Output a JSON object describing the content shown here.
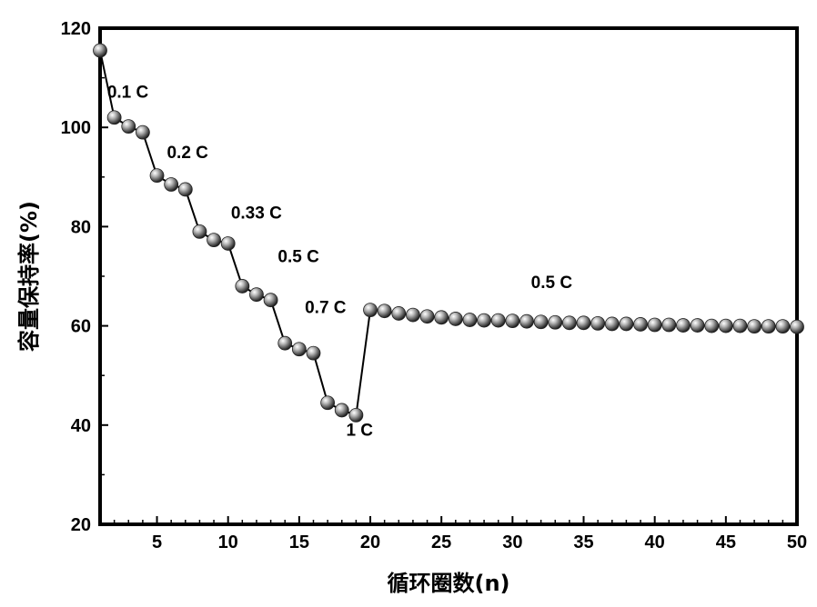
{
  "chart_data": {
    "type": "scatter",
    "title": "",
    "xlabel": "循环圈数(n)",
    "ylabel": "容量保持率(%)",
    "xlim": [
      1,
      50
    ],
    "ylim": [
      20,
      120
    ],
    "x_ticks": [
      "5",
      "10",
      "15",
      "20",
      "25",
      "30",
      "35",
      "40",
      "45",
      "50"
    ],
    "y_ticks": [
      "20",
      "40",
      "60",
      "80",
      "100",
      "120"
    ],
    "grid": false,
    "legend": "none",
    "series": [
      {
        "x": [
          1,
          2,
          3,
          4,
          5,
          6,
          7,
          8,
          9,
          10,
          11,
          12,
          13,
          14,
          15,
          16,
          17,
          18,
          19,
          20,
          21,
          22,
          23,
          24,
          25,
          26,
          27,
          28,
          29,
          30,
          31,
          32,
          33,
          34,
          35,
          36,
          37,
          38,
          39,
          40,
          41,
          42,
          43,
          44,
          45,
          46,
          47,
          48,
          49,
          50
        ],
        "y": [
          115.5,
          102,
          100.2,
          99,
          90.3,
          88.5,
          87.5,
          79,
          77.3,
          76.6,
          68,
          66.3,
          65.2,
          56.5,
          55.3,
          54.5,
          44.5,
          43,
          42,
          63.2,
          63,
          62.5,
          62.2,
          61.9,
          61.7,
          61.4,
          61.2,
          61.1,
          61.1,
          61,
          60.9,
          60.8,
          60.7,
          60.6,
          60.6,
          60.5,
          60.4,
          60.4,
          60.3,
          60.2,
          60.2,
          60.1,
          60.1,
          60,
          60,
          60,
          59.9,
          59.9,
          59.9,
          59.8
        ]
      }
    ],
    "annotations": [
      {
        "text": "0.1 C",
        "x": 1.5,
        "y": 106
      },
      {
        "text": "0.2 C",
        "x": 5.7,
        "y": 93.8
      },
      {
        "text": "0.33 C",
        "x": 10.2,
        "y": 81.6
      },
      {
        "text": "0.5 C",
        "x": 13.5,
        "y": 72.8
      },
      {
        "text": "0.7 C",
        "x": 15.4,
        "y": 62.6
      },
      {
        "text": "1 C",
        "x": 18.3,
        "y": 37.9
      },
      {
        "text": "0.5 C",
        "x": 31.3,
        "y": 67.6
      }
    ],
    "colors": {
      "marker": "#8a8a8a",
      "line": "#000000",
      "axis": "#000000"
    }
  }
}
